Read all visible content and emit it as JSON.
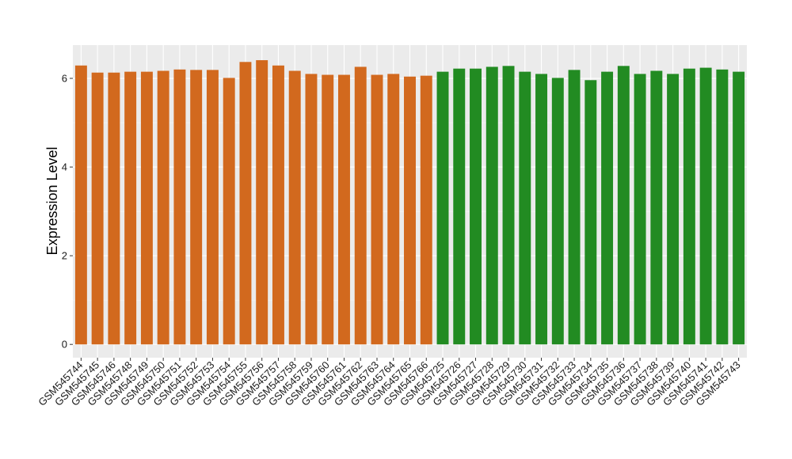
{
  "chart_data": {
    "type": "bar",
    "title": "",
    "xlabel": "",
    "ylabel": "Expression Level",
    "ylim": [
      -0.3,
      6.75
    ],
    "yticks": [
      0,
      2,
      4,
      6
    ],
    "grid": true,
    "legend": "none",
    "colors": {
      "panel_bg": "#ebebeb",
      "grid": "#ffffff",
      "group_a": "#d2691e",
      "group_b": "#228b22"
    },
    "categories": [
      "GSM545744",
      "GSM545745",
      "GSM545746",
      "GSM545748",
      "GSM545749",
      "GSM545750",
      "GSM545751",
      "GSM545752",
      "GSM545753",
      "GSM545754",
      "GSM545755",
      "GSM545756",
      "GSM545757",
      "GSM545758",
      "GSM545759",
      "GSM545760",
      "GSM545761",
      "GSM545762",
      "GSM545763",
      "GSM545764",
      "GSM545765",
      "GSM545766",
      "GSM545725",
      "GSM545726",
      "GSM545727",
      "GSM545728",
      "GSM545729",
      "GSM545730",
      "GSM545731",
      "GSM545732",
      "GSM545733",
      "GSM545734",
      "GSM545735",
      "GSM545736",
      "GSM545737",
      "GSM545738",
      "GSM545739",
      "GSM545740",
      "GSM545741",
      "GSM545742",
      "GSM545743"
    ],
    "values": [
      6.29,
      6.13,
      6.13,
      6.15,
      6.15,
      6.17,
      6.2,
      6.19,
      6.19,
      6.01,
      6.37,
      6.41,
      6.29,
      6.17,
      6.1,
      6.08,
      6.08,
      6.26,
      6.08,
      6.1,
      6.04,
      6.06,
      6.15,
      6.22,
      6.22,
      6.26,
      6.28,
      6.15,
      6.1,
      6.01,
      6.19,
      5.96,
      6.15,
      6.28,
      6.1,
      6.17,
      6.1,
      6.22,
      6.24,
      6.2,
      6.15
    ],
    "groups": [
      "a",
      "a",
      "a",
      "a",
      "a",
      "a",
      "a",
      "a",
      "a",
      "a",
      "a",
      "a",
      "a",
      "a",
      "a",
      "a",
      "a",
      "a",
      "a",
      "a",
      "a",
      "a",
      "b",
      "b",
      "b",
      "b",
      "b",
      "b",
      "b",
      "b",
      "b",
      "b",
      "b",
      "b",
      "b",
      "b",
      "b",
      "b",
      "b",
      "b",
      "b"
    ]
  }
}
